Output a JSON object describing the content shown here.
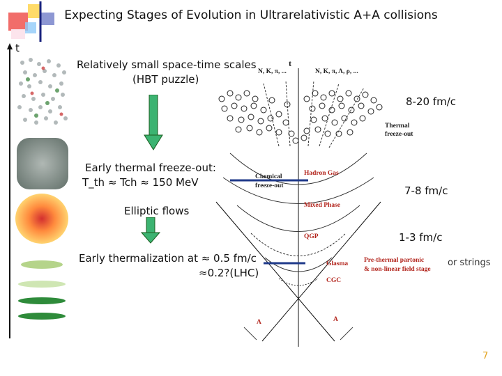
{
  "slide": {
    "title": "Expecting Stages of Evolution in Ultrarelativistic A+A collisions",
    "axis_t": "t",
    "page_number": "7"
  },
  "annotations": {
    "hbt_line1": "Relatively small space-time scales",
    "hbt_line2": "(HBT puzzle)",
    "early_fo_line1": "Early thermal freeze-out:",
    "early_fo_line2": "T_th  ≈ Tch  ≈ 150 MeV",
    "elliptic": "Elliptic flows",
    "therm_line1": "Early thermalization at ≈ 0.5 fm/c",
    "therm_line2": "≈0.2?(LHC)",
    "time_1": "8-20 fm/c",
    "time_2": "7-8 fm/c",
    "time_3": "1-3 fm/c",
    "strings": "or strings"
  },
  "diagram": {
    "t_axis": "t",
    "particles_left": "N, K, π, ...",
    "particles_right": "N, K, π, Λ, ρ, ...",
    "thermal_fo_1": "Thermal",
    "thermal_fo_2": "freeze-out",
    "chemical_fo_1": "Chemical",
    "chemical_fo_2": "freeze-out",
    "hadron_gas": "Hadron Gas",
    "mixed_phase": "Mixed Phase",
    "qgp": "QGP",
    "glasma": "Glasma",
    "cgc": "CGC",
    "prethermal_1": "Pre-thermal partonic",
    "prethermal_2": "& non-linear field stage",
    "nucleus_a": "A",
    "nucleus_b": "A"
  },
  "colors": {
    "arrow_green": "#3cb371",
    "hadron_red": "#b3261e",
    "marker_blue": "#1f3a8a",
    "logo_yellow": "#ffd700",
    "logo_red": "#e53935",
    "logo_blue": "#2b4fc7"
  }
}
